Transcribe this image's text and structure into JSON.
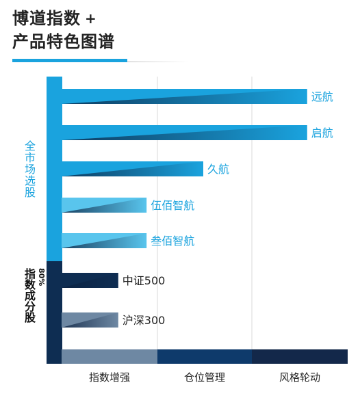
{
  "title": {
    "line1": "博道指数",
    "plus": "+",
    "line2": "产品特色图谱"
  },
  "side_labels": {
    "market": "全市场选股",
    "index_pct": "80%",
    "index_text": "指数成分股"
  },
  "colors": {
    "market": "#1aa3de",
    "index": "#0e2d52",
    "lightblue": "#59c5ed",
    "grey": "#6e88a3"
  },
  "chart_data": {
    "type": "bar",
    "orientation": "horizontal",
    "x": [
      "指数增强",
      "仓位管理",
      "风格轮动"
    ],
    "groups": [
      {
        "name": "全市场选股",
        "members": [
          "远航",
          "启航",
          "久航",
          "伍佰智航",
          "叁佰智航"
        ]
      },
      {
        "name": "80%指数成分股",
        "members": [
          "中证500",
          "沪深300"
        ]
      }
    ],
    "bars": [
      {
        "label": "远航",
        "value": 2.6,
        "color": "#1aa3de"
      },
      {
        "label": "启航",
        "value": 2.6,
        "color": "#1aa3de"
      },
      {
        "label": "久航",
        "value": 1.5,
        "color": "#1aa3de"
      },
      {
        "label": "伍佰智航",
        "value": 0.9,
        "color": "#59c5ed"
      },
      {
        "label": "叁佰智航",
        "value": 0.9,
        "color": "#59c5ed"
      },
      {
        "label": "中证500",
        "value": 0.6,
        "color": "#0e2d52"
      },
      {
        "label": "沪深300",
        "value": 0.6,
        "color": "#6e88a3"
      }
    ],
    "base_segments": [
      {
        "label": "指数增强",
        "color": "#6e88a3"
      },
      {
        "label": "仓位管理",
        "color": "#0e3a6b"
      },
      {
        "label": "风格轮动",
        "color": "#13284a"
      }
    ],
    "xlim": [
      0,
      3
    ],
    "grid": true
  }
}
